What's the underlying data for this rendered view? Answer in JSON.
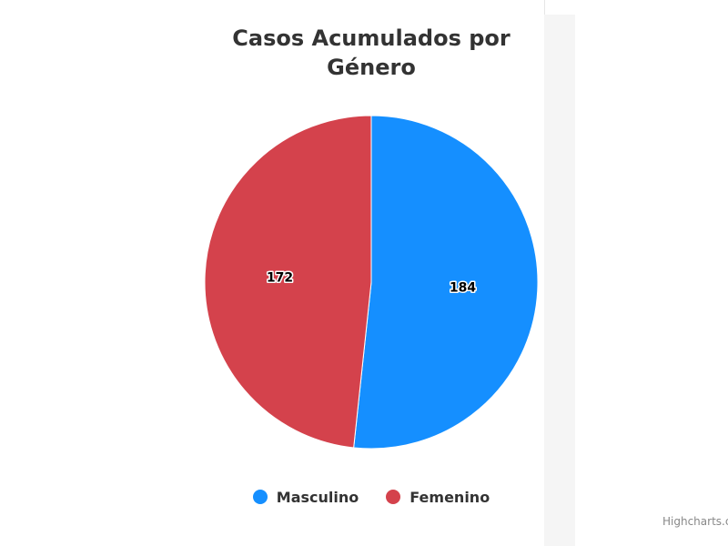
{
  "chart_data": {
    "type": "pie",
    "title": "Casos Acumulados por Género",
    "title_line1": "Casos Acumulados por",
    "title_line2": "Género",
    "categories": [
      "Masculino",
      "Femenino"
    ],
    "values": [
      184,
      172
    ],
    "colors": [
      "#158fff",
      "#d4424c"
    ],
    "legend_position": "bottom",
    "data_labels": true
  },
  "legend": {
    "items": [
      {
        "label": "Masculino",
        "color": "#158fff"
      },
      {
        "label": "Femenino",
        "color": "#d4424c"
      }
    ]
  },
  "credits": {
    "text": "Highcharts.com"
  }
}
